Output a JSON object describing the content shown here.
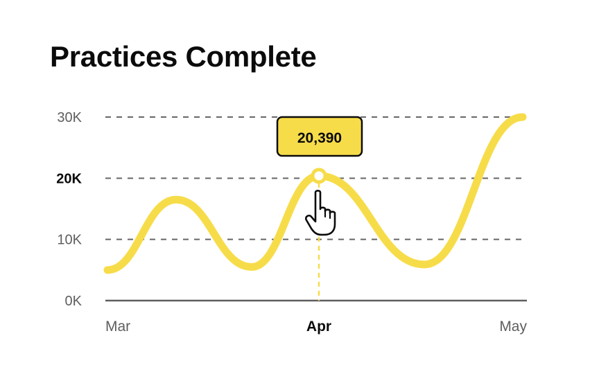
{
  "title": "Practices Complete",
  "accent_color": "#f7dc4a",
  "tooltip": {
    "label": "20,390",
    "x": "Apr",
    "y": 20390
  },
  "cursor_icon": "hand-pointer-icon",
  "chart_data": {
    "type": "line",
    "title": "Practices Complete",
    "xlabel": "",
    "ylabel": "",
    "x_ticks": [
      "Mar",
      "Apr",
      "May"
    ],
    "active_x_tick": "Apr",
    "y_ticks": [
      "0K",
      "10K",
      "20K",
      "30K"
    ],
    "y_tick_values": [
      0,
      10000,
      20000,
      30000
    ],
    "active_y_tick": "20K",
    "ylim": [
      0,
      30000
    ],
    "grid": true,
    "series": [
      {
        "color": "#f7dc4a",
        "smooth": true,
        "points": [
          {
            "x": "Mar",
            "y": 5000
          },
          {
            "x": "Mar",
            "y": 16500
          },
          {
            "x": "Mar",
            "y": 5500
          },
          {
            "x": "Apr",
            "y": 20390
          },
          {
            "x": "Apr",
            "y": 5900
          },
          {
            "x": "May",
            "y": 30000
          }
        ]
      }
    ]
  }
}
